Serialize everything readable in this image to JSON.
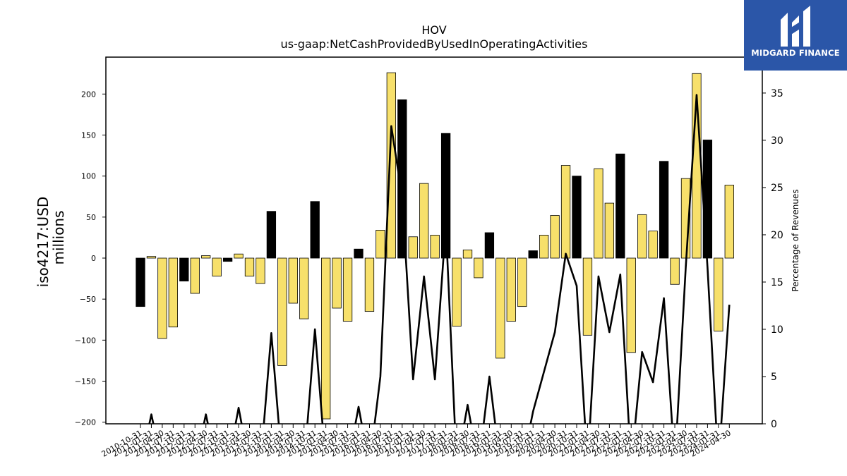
{
  "logo": {
    "text": "MIDGARD FINANCE"
  },
  "chart_data": {
    "type": "bar+line",
    "title": "HOV",
    "subtitle": "us-gaap:NetCashProvidedByUsedInOperatingActivities",
    "ylabel": "iso4217:USD",
    "ylabel2": "millions",
    "y2label": "Percentage of Revenues",
    "ylim": [
      -202,
      245
    ],
    "y2lim": [
      0,
      38.8
    ],
    "yticks": [
      -200,
      -150,
      -100,
      -50,
      0,
      50,
      100,
      150,
      200
    ],
    "y2ticks": [
      0,
      5,
      10,
      15,
      20,
      25,
      30,
      35
    ],
    "colors": {
      "annual": "#f7e06b",
      "quarterly": "#000000",
      "line": "#000000"
    },
    "categories": [
      "2010-10-31",
      "2011-01-31",
      "2011-04-30",
      "2011-07-31",
      "2011-10-31",
      "2012-01-31",
      "2012-04-30",
      "2012-07-31",
      "2012-10-31",
      "2013-01-31",
      "2013-04-30",
      "2013-07-31",
      "2013-10-31",
      "2014-01-31",
      "2014-04-30",
      "2014-07-31",
      "2014-10-31",
      "2015-01-31",
      "2015-04-30",
      "2015-07-31",
      "2015-10-31",
      "2016-01-31",
      "2016-04-30",
      "2016-07-31",
      "2016-10-31",
      "2017-01-31",
      "2017-04-30",
      "2017-07-31",
      "2017-10-31",
      "2018-01-31",
      "2018-04-30",
      "2018-07-31",
      "2018-10-31",
      "2019-01-31",
      "2019-04-30",
      "2019-07-31",
      "2019-10-31",
      "2020-01-31",
      "2020-04-30",
      "2020-07-31",
      "2020-10-31",
      "2021-01-31",
      "2021-04-30",
      "2021-07-31",
      "2021-10-31",
      "2022-01-31",
      "2022-04-30",
      "2022-07-31",
      "2022-10-31",
      "2023-01-31",
      "2023-04-30",
      "2023-07-31",
      "2023-10-31",
      "2024-01-31",
      "2024-04-30"
    ],
    "series": [
      {
        "values": [
          -59,
          2,
          -98,
          -84,
          -28,
          -43,
          3,
          -22,
          -4,
          5,
          -22,
          -31,
          57,
          -131,
          -55,
          -74,
          69,
          -196,
          -61,
          -77,
          11,
          -65,
          34,
          226,
          193,
          26,
          91,
          28,
          152,
          -83,
          10,
          -24,
          31,
          -122,
          -77,
          -59,
          9,
          28,
          52,
          113,
          100,
          -94,
          109,
          67,
          127,
          -115,
          53,
          33,
          118,
          -32,
          97,
          225,
          144,
          -89,
          89
        ]
      },
      {
        "name": "Percentage of Revenues",
        "values": [
          null,
          1,
          null,
          null,
          null,
          null,
          1,
          null,
          null,
          1.7,
          null,
          null,
          9.6,
          null,
          null,
          null,
          10,
          null,
          null,
          null,
          1.8,
          null,
          5,
          31.5,
          24,
          4.7,
          15.6,
          4.7,
          21.1,
          null,
          2,
          null,
          5,
          null,
          null,
          null,
          1.3,
          5.5,
          9.7,
          18,
          14.6,
          null,
          15.6,
          9.7,
          15.8,
          null,
          7.6,
          4.4,
          13.3,
          null,
          16.5,
          34.8,
          16.5,
          null,
          12.6
        ]
      }
    ]
  }
}
